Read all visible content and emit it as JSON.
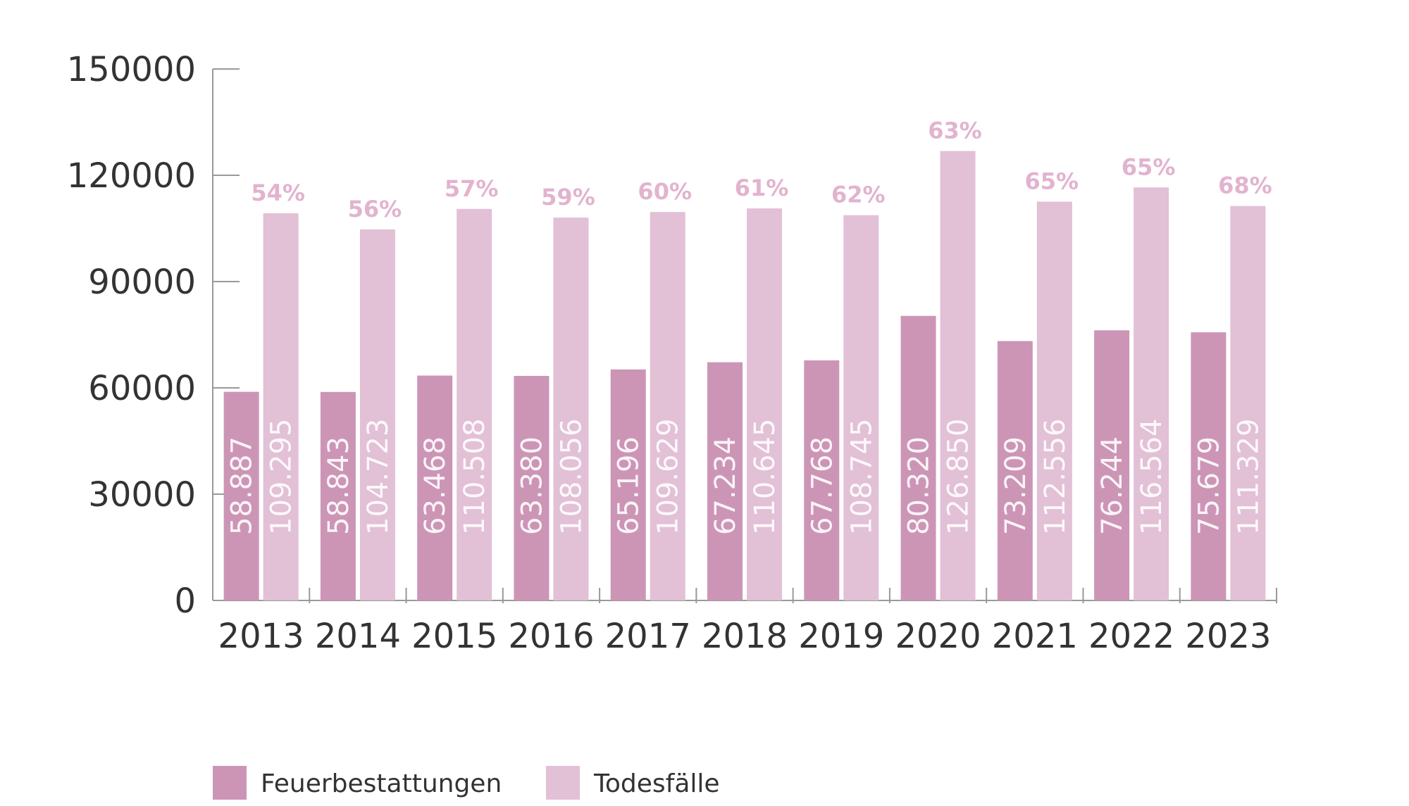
{
  "chart_data": {
    "type": "bar",
    "categories": [
      "2013",
      "2014",
      "2015",
      "2016",
      "2017",
      "2018",
      "2019",
      "2020",
      "2021",
      "2022",
      "2023"
    ],
    "series": [
      {
        "name": "Feuerbestattungen",
        "color": "#cc95b6",
        "values": [
          58887,
          58843,
          63468,
          63380,
          65196,
          67234,
          67768,
          80320,
          73209,
          76244,
          75679
        ],
        "labels": [
          "58.887",
          "58.843",
          "63.468",
          "63.380",
          "65.196",
          "67.234",
          "67.768",
          "80.320",
          "73.209",
          "76.244",
          "75.679"
        ]
      },
      {
        "name": "Todesfälle",
        "color": "#e2c0d6",
        "values": [
          109295,
          104723,
          110508,
          108056,
          109629,
          110645,
          108745,
          126850,
          112556,
          116564,
          111329
        ],
        "labels": [
          "109.295",
          "104.723",
          "110.508",
          "108.056",
          "109.629",
          "110.645",
          "108.745",
          "126.850",
          "112.556",
          "116.564",
          "111.329"
        ]
      }
    ],
    "percent_labels": [
      "54%",
      "56%",
      "57%",
      "59%",
      "60%",
      "61%",
      "62%",
      "63%",
      "65%",
      "65%",
      "68%"
    ],
    "percent_color": "#e2b3cf",
    "ylim": [
      0,
      150000
    ],
    "yticks": [
      "0",
      "30000",
      "60000",
      "90000",
      "120000",
      "150000"
    ],
    "ytick_values": [
      0,
      30000,
      60000,
      90000,
      120000,
      150000
    ],
    "title": "",
    "xlabel": "",
    "ylabel": "",
    "grid": false,
    "legend_position": "bottom-left"
  }
}
